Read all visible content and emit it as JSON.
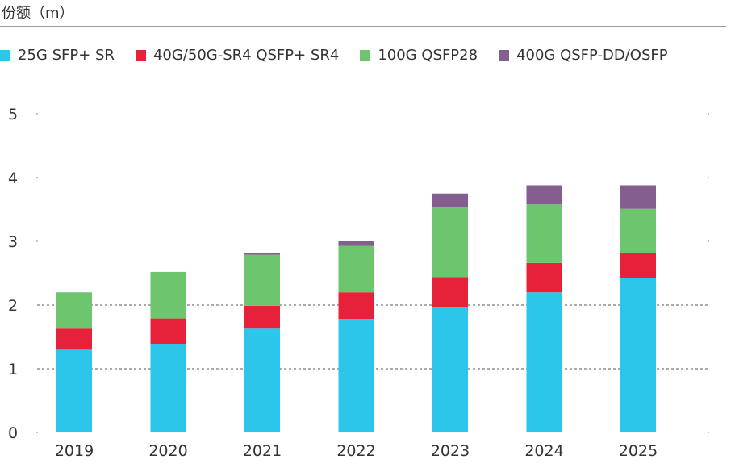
{
  "chart_data": {
    "type": "bar",
    "stacked": true,
    "ylabel": "份额（m）",
    "categories": [
      "2019",
      "2020",
      "2021",
      "2022",
      "2023",
      "2024",
      "2025"
    ],
    "series": [
      {
        "name": "25G SFP+ SR",
        "color": "#2BC6EA",
        "values": [
          1.3,
          1.39,
          1.63,
          1.78,
          1.97,
          2.2,
          2.43
        ]
      },
      {
        "name": "40G/50G-SR4 QSFP+ SR4",
        "color": "#E8213A",
        "values": [
          0.33,
          0.4,
          0.36,
          0.42,
          0.47,
          0.46,
          0.38
        ]
      },
      {
        "name": "100G QSFP28",
        "color": "#6DC66E",
        "values": [
          0.57,
          0.73,
          0.8,
          0.73,
          1.09,
          0.92,
          0.7
        ]
      },
      {
        "name": "400G QSFP-DD/OSFP",
        "color": "#835E8E",
        "values": [
          0.0,
          0.0,
          0.02,
          0.07,
          0.22,
          0.3,
          0.37
        ]
      }
    ],
    "ylim": [
      0,
      5
    ],
    "yticks": [
      "0",
      "1",
      "2",
      "3",
      "4",
      "5"
    ],
    "grid": "dashed horizontal lines",
    "legend_position": "top"
  }
}
